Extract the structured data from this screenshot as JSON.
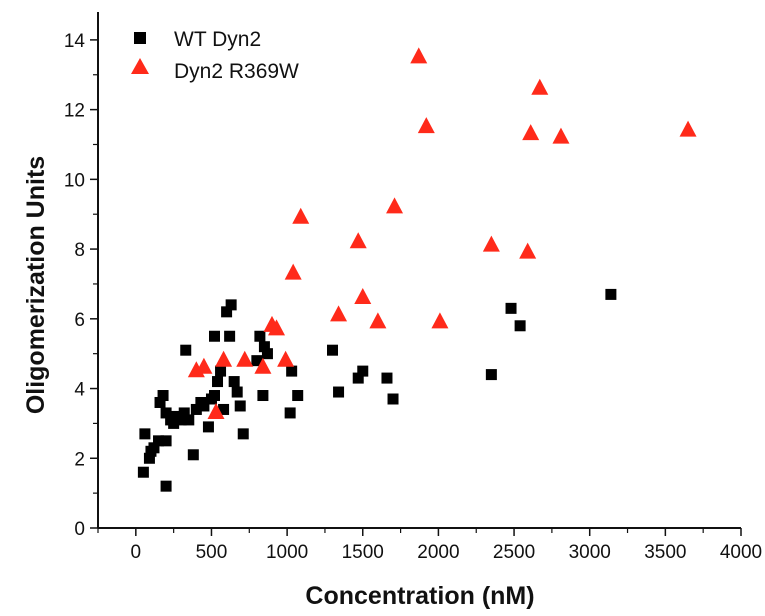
{
  "chart_data": {
    "type": "scatter",
    "title": "",
    "xlabel": "Concentration (nM)",
    "ylabel": "Oligomerization Units",
    "xlim": [
      -250,
      4000
    ],
    "ylim": [
      0,
      14.8
    ],
    "xticks": [
      0,
      500,
      1000,
      1500,
      2000,
      2500,
      3000,
      3500,
      4000
    ],
    "yticks": [
      0,
      2,
      4,
      6,
      8,
      10,
      12,
      14
    ],
    "grid": false,
    "legend_position": "top-left",
    "series": [
      {
        "name": "WT Dyn2",
        "marker": "square",
        "color": "#000000",
        "points": [
          [
            50,
            1.6
          ],
          [
            60,
            2.7
          ],
          [
            90,
            2.0
          ],
          [
            100,
            2.2
          ],
          [
            120,
            2.3
          ],
          [
            150,
            2.5
          ],
          [
            160,
            3.6
          ],
          [
            180,
            3.8
          ],
          [
            200,
            1.2
          ],
          [
            200,
            2.5
          ],
          [
            200,
            3.3
          ],
          [
            230,
            3.1
          ],
          [
            250,
            3.0
          ],
          [
            270,
            3.2
          ],
          [
            300,
            3.1
          ],
          [
            320,
            3.3
          ],
          [
            330,
            5.1
          ],
          [
            350,
            3.1
          ],
          [
            380,
            2.1
          ],
          [
            400,
            3.4
          ],
          [
            430,
            3.6
          ],
          [
            450,
            3.5
          ],
          [
            480,
            2.9
          ],
          [
            500,
            3.7
          ],
          [
            520,
            5.5
          ],
          [
            520,
            3.8
          ],
          [
            540,
            4.2
          ],
          [
            560,
            4.5
          ],
          [
            580,
            3.4
          ],
          [
            600,
            6.2
          ],
          [
            620,
            5.5
          ],
          [
            630,
            6.4
          ],
          [
            650,
            4.2
          ],
          [
            670,
            3.9
          ],
          [
            690,
            3.5
          ],
          [
            710,
            2.7
          ],
          [
            800,
            4.8
          ],
          [
            820,
            5.5
          ],
          [
            840,
            3.8
          ],
          [
            850,
            5.2
          ],
          [
            870,
            5.0
          ],
          [
            1020,
            3.3
          ],
          [
            1030,
            4.5
          ],
          [
            1070,
            3.8
          ],
          [
            1300,
            5.1
          ],
          [
            1340,
            3.9
          ],
          [
            1470,
            4.3
          ],
          [
            1500,
            4.5
          ],
          [
            1660,
            4.3
          ],
          [
            1700,
            3.7
          ],
          [
            2350,
            4.4
          ],
          [
            2480,
            6.3
          ],
          [
            2540,
            5.8
          ],
          [
            3140,
            6.7
          ]
        ]
      },
      {
        "name": "Dyn2 R369W",
        "marker": "triangle",
        "color": "#ff2a1a",
        "points": [
          [
            400,
            4.5
          ],
          [
            450,
            4.6
          ],
          [
            530,
            3.3
          ],
          [
            580,
            4.8
          ],
          [
            720,
            4.8
          ],
          [
            840,
            4.6
          ],
          [
            900,
            5.8
          ],
          [
            930,
            5.7
          ],
          [
            990,
            4.8
          ],
          [
            1040,
            7.3
          ],
          [
            1090,
            8.9
          ],
          [
            1340,
            6.1
          ],
          [
            1470,
            8.2
          ],
          [
            1500,
            6.6
          ],
          [
            1600,
            5.9
          ],
          [
            1710,
            9.2
          ],
          [
            1870,
            13.5
          ],
          [
            1920,
            11.5
          ],
          [
            2010,
            5.9
          ],
          [
            2350,
            8.1
          ],
          [
            2590,
            7.9
          ],
          [
            2610,
            11.3
          ],
          [
            2670,
            12.6
          ],
          [
            2810,
            11.2
          ],
          [
            3650,
            11.4
          ]
        ]
      }
    ]
  }
}
